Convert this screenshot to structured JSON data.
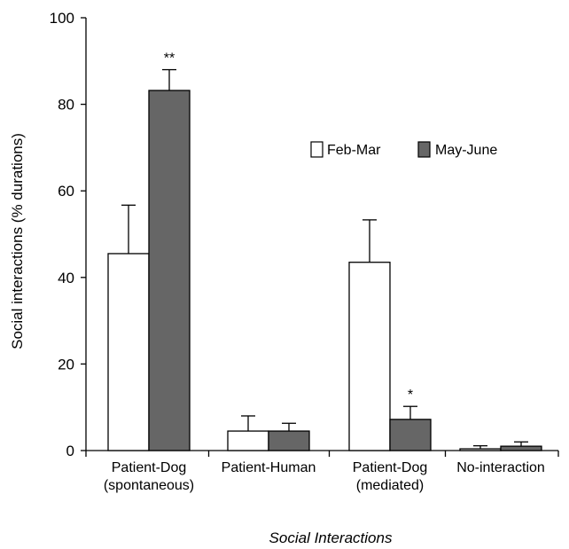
{
  "chart_data": {
    "type": "bar",
    "title": "",
    "xlabel": "Social Interactions",
    "ylabel": "Social interactions (% durations)",
    "ylim": [
      0,
      100
    ],
    "yticks": [
      0,
      20,
      40,
      60,
      80,
      100
    ],
    "grid": false,
    "legend_placement": "top-right",
    "categories": [
      [
        "Patient-Dog",
        "(spontaneous)"
      ],
      [
        "Patient-Human"
      ],
      [
        "Patient-Dog",
        "(mediated)"
      ],
      [
        "No-interaction"
      ]
    ],
    "series": [
      {
        "name": "Feb-Mar",
        "color": "#ffffff",
        "values": [
          45.5,
          4.5,
          43.5,
          0.4
        ],
        "errors": [
          11.2,
          3.5,
          9.8,
          0.7
        ]
      },
      {
        "name": "May-June",
        "color": "#666666",
        "values": [
          83.2,
          4.5,
          7.2,
          1.0
        ],
        "errors": [
          4.8,
          1.8,
          3.0,
          1.0
        ]
      }
    ],
    "annotations": [
      {
        "category": 0,
        "series": 1,
        "text": "**"
      },
      {
        "category": 2,
        "series": 1,
        "text": "*"
      }
    ]
  }
}
